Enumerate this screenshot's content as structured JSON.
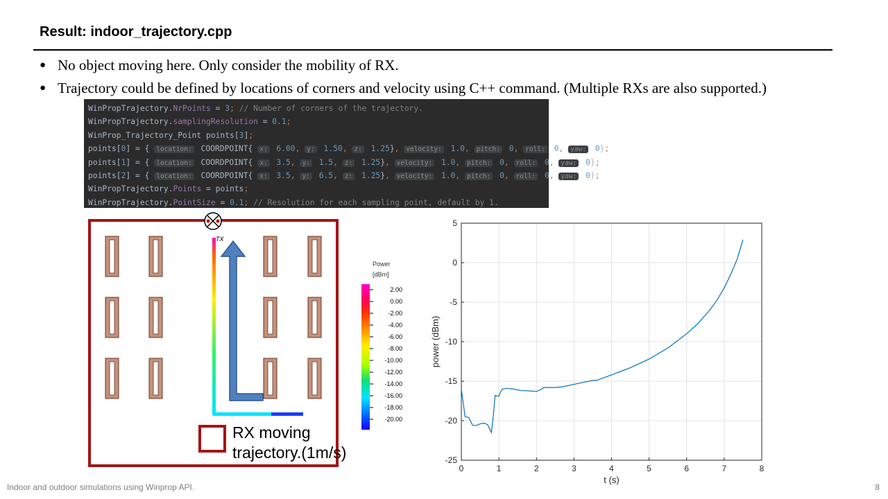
{
  "slide": {
    "title": "Result: indoor_trajectory.cpp",
    "bullets": [
      "No object moving here. Only consider the mobility of RX.",
      "Trajectory could be defined by locations of corners and velocity using C++ command. (Multiple RXs are also supported.)"
    ],
    "bullet_symbol": "●",
    "footer": "Indoor and outdoor simulations using Winprop API.",
    "page_number": "8"
  },
  "code_lines": [
    "WinPropTrajectory.NrPoints = 3; // Number of corners of the trajectory.",
    "WinPropTrajectory.samplingResolution = 0.1;",
    "WinProp_Trajectory_Point points[3];",
    "points[0] = { .location: COORDPOINT{ .x: 6.00, .y: 1.50, .z: 1.25}, .velocity: 1.0, .pitch: 0, .roll: 0, .yaw: 0};",
    "points[1] = { .location: COORDPOINT{ .x: 3.5, .y: 1.5, .z: 1.25}, .velocity: 1.0, .pitch: 0, .roll: 0, .yaw: 0};",
    "points[2] = { .location: COORDPOINT{ .x: 3.5, .y: 6.5, .z: 1.25}, .velocity: 1.0, .pitch: 0, .roll: 0, .yaw: 0};",
    "WinPropTrajectory.Points = points;",
    "WinPropTrajectory.PointSize = 0.1; // Resolution for each sampling point, default by 1."
  ],
  "map": {
    "tx_label": "TX",
    "rx_legend_label": "RX moving trajectory.(1m/s)",
    "wall_color": "#a31515",
    "desk_color": "#c8907a",
    "arrow_color": "#4f81bd"
  },
  "power_legend": {
    "title": "Power",
    "unit": "[dBm]",
    "ticks": [
      "2.00",
      "0.00",
      "-2.00",
      "-4.00",
      "-6.00",
      "-8.00",
      "-10.00",
      "-12.00",
      "-14.00",
      "-16.00",
      "-18.00",
      "-20.00"
    ]
  },
  "chart_data": {
    "type": "line",
    "xlabel": "t (s)",
    "ylabel": "power (dBm)",
    "xlim": [
      0,
      8
    ],
    "ylim": [
      -25,
      5
    ],
    "xticks": [
      "0",
      "1",
      "2",
      "3",
      "4",
      "5",
      "6",
      "7",
      "8"
    ],
    "yticks": [
      "5",
      "0",
      "-5",
      "-10",
      "-15",
      "-20",
      "-25"
    ],
    "grid": true,
    "series": [
      {
        "color": "#0072bd",
        "x": [
          0,
          0.1,
          0.2,
          0.3,
          0.4,
          0.5,
          0.6,
          0.7,
          0.8,
          0.85,
          0.9,
          1.0,
          1.05,
          1.1,
          1.2,
          1.4,
          1.6,
          1.7,
          2.0,
          2.1,
          2.2,
          2.3,
          2.5,
          2.7,
          3.0,
          3.3,
          3.5,
          3.6,
          4.0,
          4.5,
          5.0,
          5.5,
          6.0,
          6.3,
          6.6,
          6.8,
          7.0,
          7.2,
          7.35,
          7.5
        ],
        "y": [
          -16,
          -19.5,
          -19.6,
          -20.6,
          -20.6,
          -20.4,
          -20.3,
          -20.5,
          -21.5,
          -19.5,
          -16.8,
          -16.9,
          -16.3,
          -16,
          -15.9,
          -16,
          -16.2,
          -16.2,
          -16.3,
          -16.1,
          -15.8,
          -15.8,
          -15.8,
          -15.7,
          -15.4,
          -15.1,
          -14.9,
          -14.9,
          -14.2,
          -13.3,
          -12.2,
          -10.8,
          -9.0,
          -7.7,
          -6.1,
          -4.8,
          -3.2,
          -1.2,
          0.5,
          2.9
        ]
      }
    ]
  }
}
